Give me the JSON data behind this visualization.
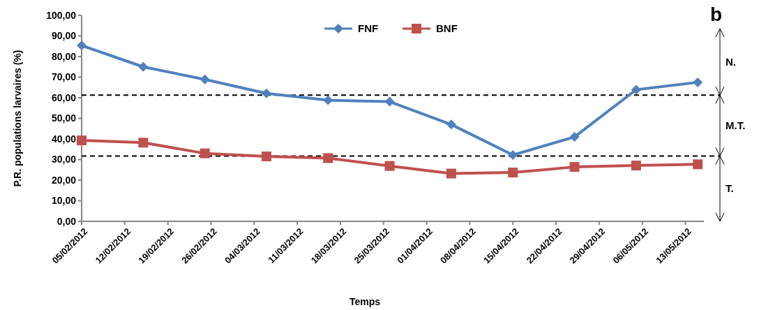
{
  "chart_data": {
    "type": "line",
    "xlabel": "Temps",
    "ylabel": "P.R. populations larvaires (%)",
    "x": [
      "2012-02-05",
      "2012-02-15",
      "2012-02-25",
      "2012-03-06",
      "2012-03-16",
      "2012-03-26",
      "2012-04-05",
      "2012-04-15",
      "2012-04-25",
      "2012-05-05",
      "2012-05-15"
    ],
    "series": [
      {
        "name": "FNF",
        "color": "#4f81bd",
        "marker": "diamond",
        "values": [
          85.4,
          75.0,
          68.9,
          62.1,
          58.8,
          58.1,
          47.0,
          32.2,
          41.0,
          63.9,
          67.5
        ]
      },
      {
        "name": "BNF",
        "color": "#c0504d",
        "marker": "square",
        "values": [
          39.3,
          38.2,
          33.0,
          31.5,
          30.7,
          26.9,
          23.2,
          23.7,
          26.4,
          27.1,
          27.7
        ]
      }
    ],
    "xlim": [
      "2012-02-05",
      "2012-05-16"
    ],
    "xticks": [
      {
        "value": "2012-02-05",
        "label": "05/02/2012"
      },
      {
        "value": "2012-02-12",
        "label": "12/02/2012"
      },
      {
        "value": "2012-02-19",
        "label": "19/02/2012"
      },
      {
        "value": "2012-02-26",
        "label": "26/02/2012"
      },
      {
        "value": "2012-03-04",
        "label": "04/03/2012"
      },
      {
        "value": "2012-03-11",
        "label": "11/03/2012"
      },
      {
        "value": "2012-03-18",
        "label": "18/03/2012"
      },
      {
        "value": "2012-03-25",
        "label": "25/03/2012"
      },
      {
        "value": "2012-04-01",
        "label": "01/04/2012"
      },
      {
        "value": "2012-04-08",
        "label": "08/04/2012"
      },
      {
        "value": "2012-04-15",
        "label": "15/04/2012"
      },
      {
        "value": "2012-04-22",
        "label": "22/04/2012"
      },
      {
        "value": "2012-04-29",
        "label": "29/04/2012"
      },
      {
        "value": "2012-05-06",
        "label": "06/05/2012"
      },
      {
        "value": "2012-05-13",
        "label": "13/05/2012"
      }
    ],
    "ylim": [
      0,
      100
    ],
    "yticks": [
      {
        "value": 0,
        "label": "0,00"
      },
      {
        "value": 10,
        "label": "10,00"
      },
      {
        "value": 20,
        "label": "20,00"
      },
      {
        "value": 30,
        "label": "30,00"
      },
      {
        "value": 40,
        "label": "40,00"
      },
      {
        "value": 50,
        "label": "50,00"
      },
      {
        "value": 60,
        "label": "60,00"
      },
      {
        "value": 70,
        "label": "70,00"
      },
      {
        "value": 80,
        "label": "80,00"
      },
      {
        "value": 90,
        "label": "90,00"
      },
      {
        "value": 100,
        "label": "100,00"
      }
    ],
    "ref_lines": [
      {
        "axis": "y",
        "value": 31.7,
        "color": "#000000",
        "line_style": "dashed"
      },
      {
        "axis": "y",
        "value": 61.3,
        "color": "#000000",
        "line_style": "dashed"
      }
    ],
    "annotations": [
      "b",
      "N.",
      "M.T.",
      "T."
    ],
    "legend": "top",
    "grid": false,
    "line_style": "solid"
  }
}
